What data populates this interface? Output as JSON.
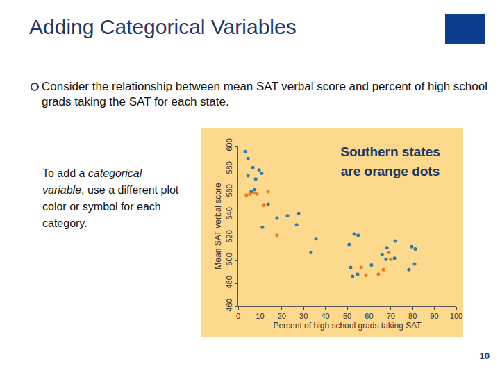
{
  "slide": {
    "title": "Adding Categorical Variables",
    "bullet": "Consider the relationship between mean SAT verbal score and percent of high school grads taking the SAT for each state.",
    "side_text": [
      {
        "text": "To add a "
      },
      {
        "text": "categorical variable",
        "italic": true
      },
      {
        "text": ", use a different plot color or symbol for each category."
      }
    ],
    "page_number": "10"
  },
  "chart_data": {
    "type": "scatter",
    "annotation": "Southern states are orange dots",
    "x_label": "Percent of high school grads taking SAT",
    "y_label": "Mean SAT verbal score",
    "marker": "circle",
    "background": "#fcd98c",
    "series": [
      {
        "color": "#2a7ab0",
        "x": [
          3.2,
          4.5,
          6.7,
          4.5,
          8,
          9.6,
          10.8,
          7.6,
          6,
          13.7,
          11.1,
          17.8,
          22.6,
          27.7,
          26.8,
          35.7,
          33.4,
          53.2,
          55,
          50.9,
          51.6,
          52.5,
          54.8,
          61.1,
          66,
          68.2,
          67.8,
          72,
          71.7,
          79.6,
          81.2,
          80.9,
          78.3
        ],
        "values": [
          595,
          589,
          581,
          574,
          571,
          579,
          576,
          562,
          560,
          549,
          529,
          537,
          539,
          541,
          531,
          519,
          507,
          523,
          522,
          514,
          494,
          486,
          488,
          496,
          505,
          511,
          501,
          517,
          502,
          512,
          510,
          497,
          492
        ]
      },
      {
        "color": "#f07a1a",
        "x": [
          3.8,
          5.4,
          7.3,
          8.6,
          13.7,
          11.8,
          17.8,
          56.4,
          58.6,
          64.3,
          66.6,
          69.1,
          70
        ],
        "values": [
          557,
          558,
          559,
          558,
          560,
          548,
          522,
          494,
          487,
          488,
          492,
          507,
          501
        ]
      }
    ],
    "xlim": [
      0,
      100
    ],
    "xticks": [
      0,
      10,
      20,
      30,
      40,
      50,
      60,
      70,
      80,
      90,
      100
    ],
    "ylim": [
      460,
      600
    ],
    "yticks": [
      460,
      480,
      500,
      520,
      540,
      560,
      580,
      600
    ],
    "grid": false
  }
}
